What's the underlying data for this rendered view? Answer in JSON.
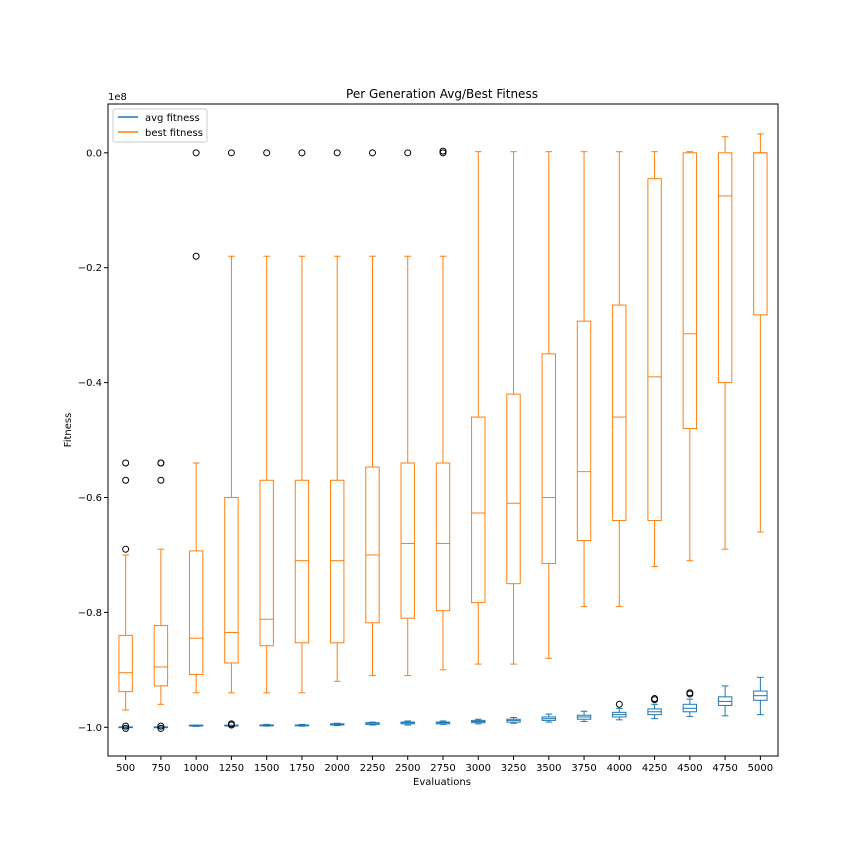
{
  "chart_data": {
    "type": "box",
    "title": "Per Generation Avg/Best Fitness",
    "xlabel": "Evaluations",
    "ylabel": "Fitness",
    "y_offset_label": "1e8",
    "y_multiplier": 100000000,
    "ylim": [
      -1.05,
      0.085
    ],
    "y_ticks": [
      0.0,
      -0.2,
      -0.4,
      -0.6,
      -0.8,
      -1.0
    ],
    "y_tick_labels": [
      "0.0",
      "−0.2",
      "−0.4",
      "−0.6",
      "−0.8",
      "−1.0"
    ],
    "categories": [
      "500",
      "750",
      "1000",
      "1250",
      "1500",
      "1750",
      "2000",
      "2250",
      "2500",
      "2750",
      "3000",
      "3250",
      "3500",
      "3750",
      "4000",
      "4250",
      "4500",
      "4750",
      "5000"
    ],
    "legend": {
      "location": "top-left"
    },
    "colors": {
      "avg": "#1f77b4",
      "best": "#ff7f0e"
    },
    "series": [
      {
        "name": "avg fitness",
        "boxes": [
          {
            "whislo": -1.0,
            "q1": -1.0,
            "med": -1.0,
            "q3": -1.0,
            "whishi": -1.0,
            "fliers": [
              -0.998,
              -1.002
            ]
          },
          {
            "whislo": -1.0,
            "q1": -1.0,
            "med": -1.0,
            "q3": -1.0,
            "whishi": -1.0,
            "fliers": [
              -0.998,
              -1.002
            ]
          },
          {
            "whislo": -0.9985,
            "q1": -0.998,
            "med": -0.9975,
            "q3": -0.997,
            "whishi": -0.9965,
            "fliers": []
          },
          {
            "whislo": -0.9985,
            "q1": -0.998,
            "med": -0.9975,
            "q3": -0.997,
            "whishi": -0.9965,
            "fliers": [
              -0.994,
              -0.996
            ]
          },
          {
            "whislo": -0.998,
            "q1": -0.9975,
            "med": -0.997,
            "q3": -0.996,
            "whishi": -0.995,
            "fliers": []
          },
          {
            "whislo": -0.998,
            "q1": -0.9975,
            "med": -0.997,
            "q3": -0.996,
            "whishi": -0.995,
            "fliers": []
          },
          {
            "whislo": -0.997,
            "q1": -0.996,
            "med": -0.995,
            "q3": -0.994,
            "whishi": -0.993,
            "fliers": []
          },
          {
            "whislo": -0.996,
            "q1": -0.995,
            "med": -0.993,
            "q3": -0.992,
            "whishi": -0.991,
            "fliers": []
          },
          {
            "whislo": -0.996,
            "q1": -0.994,
            "med": -0.992,
            "q3": -0.991,
            "whishi": -0.989,
            "fliers": []
          },
          {
            "whislo": -0.995,
            "q1": -0.994,
            "med": -0.992,
            "q3": -0.991,
            "whishi": -0.989,
            "fliers": []
          },
          {
            "whislo": -0.994,
            "q1": -0.992,
            "med": -0.99,
            "q3": -0.988,
            "whishi": -0.986,
            "fliers": []
          },
          {
            "whislo": -0.993,
            "q1": -0.991,
            "med": -0.988,
            "q3": -0.986,
            "whishi": -0.983,
            "fliers": []
          },
          {
            "whislo": -0.991,
            "q1": -0.988,
            "med": -0.985,
            "q3": -0.982,
            "whishi": -0.977,
            "fliers": []
          },
          {
            "whislo": -0.99,
            "q1": -0.986,
            "med": -0.982,
            "q3": -0.979,
            "whishi": -0.972,
            "fliers": []
          },
          {
            "whislo": -0.987,
            "q1": -0.982,
            "med": -0.978,
            "q3": -0.974,
            "whishi": -0.967,
            "fliers": [
              -0.96
            ]
          },
          {
            "whislo": -0.985,
            "q1": -0.978,
            "med": -0.973,
            "q3": -0.968,
            "whishi": -0.96,
            "fliers": [
              -0.95,
              -0.952
            ]
          },
          {
            "whislo": -0.981,
            "q1": -0.973,
            "med": -0.967,
            "q3": -0.96,
            "whishi": -0.951,
            "fliers": [
              -0.94,
              -0.942
            ]
          },
          {
            "whislo": -0.98,
            "q1": -0.962,
            "med": -0.955,
            "q3": -0.947,
            "whishi": -0.928,
            "fliers": []
          },
          {
            "whislo": -0.978,
            "q1": -0.953,
            "med": -0.945,
            "q3": -0.937,
            "whishi": -0.913,
            "fliers": []
          }
        ]
      },
      {
        "name": "best fitness",
        "boxes": [
          {
            "whislo": -0.97,
            "q1": -0.938,
            "med": -0.905,
            "q3": -0.84,
            "whishi": -0.7,
            "fliers": [
              -0.69,
              -0.57,
              -0.54
            ]
          },
          {
            "whislo": -0.96,
            "q1": -0.928,
            "med": -0.895,
            "q3": -0.823,
            "whishi": -0.69,
            "fliers": [
              -0.57,
              -0.54,
              -0.54
            ]
          },
          {
            "whislo": -0.94,
            "q1": -0.908,
            "med": -0.845,
            "q3": -0.693,
            "whishi": -0.54,
            "fliers": [
              -0.18,
              0.0
            ]
          },
          {
            "whislo": -0.94,
            "q1": -0.888,
            "med": -0.835,
            "q3": -0.6,
            "whishi": -0.18,
            "fliers": [
              0.0
            ]
          },
          {
            "whislo": -0.94,
            "q1": -0.858,
            "med": -0.812,
            "q3": -0.57,
            "whishi": -0.18,
            "fliers": [
              0.0
            ]
          },
          {
            "whislo": -0.94,
            "q1": -0.853,
            "med": -0.71,
            "q3": -0.57,
            "whishi": -0.18,
            "fliers": [
              0.0
            ]
          },
          {
            "whislo": -0.92,
            "q1": -0.853,
            "med": -0.71,
            "q3": -0.57,
            "whishi": -0.18,
            "fliers": [
              0.0
            ]
          },
          {
            "whislo": -0.91,
            "q1": -0.818,
            "med": -0.7,
            "q3": -0.547,
            "whishi": -0.18,
            "fliers": [
              0.0
            ]
          },
          {
            "whislo": -0.91,
            "q1": -0.81,
            "med": -0.68,
            "q3": -0.54,
            "whishi": -0.18,
            "fliers": [
              0.0
            ]
          },
          {
            "whislo": -0.9,
            "q1": -0.797,
            "med": -0.68,
            "q3": -0.54,
            "whishi": -0.18,
            "fliers": [
              0.0,
              0.003
            ]
          },
          {
            "whislo": -0.89,
            "q1": -0.783,
            "med": -0.627,
            "q3": -0.46,
            "whishi": 0.002,
            "fliers": []
          },
          {
            "whislo": -0.89,
            "q1": -0.75,
            "med": -0.61,
            "q3": -0.42,
            "whishi": 0.002,
            "fliers": []
          },
          {
            "whislo": -0.88,
            "q1": -0.715,
            "med": -0.6,
            "q3": -0.35,
            "whishi": 0.002,
            "fliers": []
          },
          {
            "whislo": -0.79,
            "q1": -0.675,
            "med": -0.555,
            "q3": -0.293,
            "whishi": 0.002,
            "fliers": []
          },
          {
            "whislo": -0.79,
            "q1": -0.64,
            "med": -0.46,
            "q3": -0.265,
            "whishi": 0.002,
            "fliers": []
          },
          {
            "whislo": -0.72,
            "q1": -0.64,
            "med": -0.39,
            "q3": -0.045,
            "whishi": 0.002,
            "fliers": []
          },
          {
            "whislo": -0.71,
            "q1": -0.48,
            "med": -0.315,
            "q3": 0.0,
            "whishi": 0.002,
            "fliers": []
          },
          {
            "whislo": -0.69,
            "q1": -0.4,
            "med": -0.075,
            "q3": 0.0,
            "whishi": 0.028,
            "fliers": []
          },
          {
            "whislo": -0.66,
            "q1": -0.282,
            "med": 0.0,
            "q3": 0.0,
            "whishi": 0.033,
            "fliers": []
          }
        ]
      }
    ]
  }
}
